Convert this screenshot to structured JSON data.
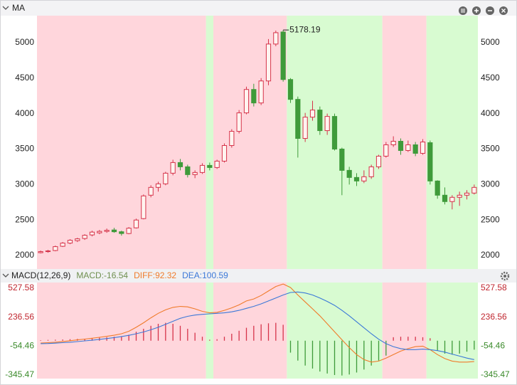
{
  "chart_data": [
    {
      "type": "candlestick",
      "title": "MA",
      "categories": [
        null,
        null,
        null,
        null,
        null,
        null,
        null,
        null,
        null,
        null,
        null,
        null,
        null,
        null,
        null,
        null,
        null,
        null,
        null,
        null,
        null,
        null,
        null,
        null,
        null,
        null,
        null,
        null,
        null,
        null,
        null,
        null,
        null,
        null,
        null,
        null,
        null,
        null,
        null,
        null,
        null,
        null,
        null,
        null,
        null,
        null,
        null,
        null,
        null,
        null,
        null,
        null,
        null,
        null,
        null,
        null,
        null,
        null,
        null,
        null
      ],
      "open": [
        2040,
        2055,
        2070,
        2130,
        2175,
        2210,
        2240,
        2290,
        2320,
        2340,
        2360,
        2335,
        2310,
        2390,
        2520,
        2850,
        2960,
        3010,
        3160,
        3310,
        3250,
        3140,
        3170,
        3270,
        3240,
        3330,
        3550,
        3750,
        4010,
        4340,
        4150,
        4460,
        4980,
        5150,
        4480,
        4200,
        3650,
        3950,
        4050,
        3760,
        3960,
        3500,
        3200,
        3100,
        3050,
        3110,
        3250,
        3400,
        3560,
        3610,
        3480,
        3560,
        3440,
        3590,
        3050,
        2850,
        2760,
        2820,
        2850,
        2880
      ],
      "high": [
        2070,
        2080,
        2140,
        2190,
        2230,
        2250,
        2300,
        2350,
        2360,
        2380,
        2390,
        2350,
        2400,
        2520,
        2860,
        2990,
        3040,
        3180,
        3350,
        3360,
        3280,
        3200,
        3300,
        3310,
        3350,
        3580,
        3780,
        4050,
        4380,
        4420,
        4500,
        5050,
        5170,
        5178.19,
        4500,
        4240,
        4010,
        4180,
        4100,
        4000,
        4000,
        3520,
        3250,
        3160,
        3200,
        3280,
        3420,
        3600,
        3680,
        3650,
        3620,
        3600,
        3640,
        3620,
        3060,
        2960,
        2850,
        2900,
        2920,
        3000
      ],
      "low": [
        2030,
        2040,
        2060,
        2120,
        2160,
        2190,
        2220,
        2270,
        2300,
        2320,
        2320,
        2280,
        2300,
        2380,
        2510,
        2820,
        2900,
        2990,
        3130,
        3200,
        3100,
        3090,
        3150,
        3200,
        3220,
        3310,
        3520,
        3720,
        3990,
        4100,
        4120,
        4400,
        4950,
        4450,
        4150,
        3380,
        3600,
        3900,
        3700,
        3700,
        3480,
        2850,
        3000,
        2980,
        3020,
        3080,
        3220,
        3380,
        3530,
        3420,
        3460,
        3400,
        3420,
        3000,
        2800,
        2720,
        2650,
        2700,
        2790,
        2860
      ],
      "close": [
        2055,
        2065,
        2125,
        2175,
        2215,
        2235,
        2285,
        2330,
        2340,
        2355,
        2335,
        2310,
        2385,
        2500,
        2840,
        2960,
        3010,
        3160,
        3310,
        3250,
        3140,
        3170,
        3270,
        3240,
        3330,
        3550,
        3750,
        4010,
        4340,
        4150,
        4460,
        4980,
        5140,
        4480,
        4200,
        3650,
        3950,
        4050,
        3760,
        3960,
        3500,
        3200,
        3100,
        3050,
        3110,
        3250,
        3400,
        3560,
        3610,
        3480,
        3560,
        3440,
        3600,
        3050,
        2850,
        2760,
        2820,
        2850,
        2880,
        2960
      ],
      "up_color": "#d6334a",
      "down_color": "#3f9b3a",
      "ylim": [
        1810,
        5380
      ],
      "yticks": [
        2000,
        2500,
        3000,
        3500,
        4000,
        4500,
        5000
      ],
      "bands": [
        {
          "from": 0,
          "to": 22,
          "color": "#ffd6dc"
        },
        {
          "from": 23,
          "to": 23,
          "color": "#d8fbd1"
        },
        {
          "from": 24,
          "to": 33,
          "color": "#ffd6dc"
        },
        {
          "from": 34,
          "to": 46,
          "color": "#d8fbd1"
        },
        {
          "from": 47,
          "to": 52,
          "color": "#ffd6dc"
        },
        {
          "from": 53,
          "to": 59,
          "color": "#d8fbd1"
        }
      ]
    },
    {
      "type": "combo",
      "title": "MACD(12,26,9)",
      "series": [
        {
          "name": "MACD:-16.54",
          "kind": "bar",
          "color": "#6f8f4f",
          "up_color": "#d6334a",
          "down_color": "#3f9b3a",
          "values": [
            5,
            8,
            10,
            12,
            15,
            18,
            20,
            25,
            30,
            35,
            40,
            45,
            60,
            90,
            120,
            150,
            170,
            180,
            170,
            150,
            120,
            80,
            40,
            10,
            15,
            40,
            70,
            100,
            130,
            150,
            165,
            175,
            180,
            160,
            -120,
            -200,
            -250,
            -280,
            -310,
            -330,
            -345,
            -350,
            -340,
            -320,
            -290,
            -250,
            -200,
            -150,
            35,
            40,
            40,
            40,
            35,
            25,
            -100,
            -130,
            -140,
            -130,
            -110,
            -90
          ]
        },
        {
          "name": "DIFF:92.32",
          "kind": "line",
          "color": "#f07b2b",
          "values": [
            -23,
            -20,
            -15,
            -8,
            0,
            8,
            16,
            25,
            34,
            44,
            55,
            70,
            95,
            135,
            180,
            230,
            275,
            310,
            335,
            345,
            340,
            320,
            295,
            280,
            285,
            305,
            330,
            360,
            400,
            420,
            455,
            500,
            545,
            570,
            535,
            460,
            390,
            320,
            250,
            170,
            90,
            10,
            -70,
            -140,
            -190,
            -215,
            -205,
            -175,
            -140,
            -105,
            -80,
            -60,
            -55,
            -90,
            -140,
            -180,
            -205,
            -215,
            -215,
            -210
          ]
        },
        {
          "name": "DEA:100.59",
          "kind": "line",
          "color": "#3b78d8",
          "values": [
            -30,
            -28,
            -25,
            -20,
            -15,
            -9,
            -2,
            5,
            13,
            22,
            31,
            42,
            54,
            70,
            88,
            110,
            135,
            165,
            195,
            225,
            245,
            258,
            265,
            270,
            275,
            280,
            290,
            305,
            325,
            345,
            370,
            400,
            430,
            460,
            485,
            490,
            480,
            460,
            430,
            395,
            355,
            305,
            250,
            190,
            130,
            70,
            15,
            -30,
            -60,
            -80,
            -90,
            -90,
            -85,
            -90,
            -100,
            -115,
            -135,
            -155,
            -175,
            -190
          ]
        }
      ],
      "ylim": [
        -381,
        585
      ],
      "yticks": [
        -345.47,
        -54.46,
        236.56,
        527.58
      ],
      "pos_tick_color": "#c0262f",
      "neg_tick_color": "#3a8a2a"
    }
  ]
}
